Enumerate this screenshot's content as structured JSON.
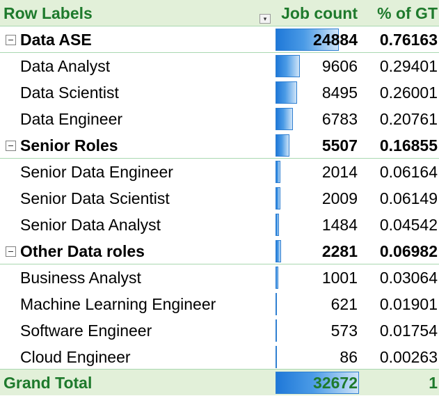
{
  "header": {
    "row_labels": "Row Labels",
    "job_count": "Job count",
    "pct_of_gt": "% of GT"
  },
  "colors": {
    "header_bg": "#e2f0d9",
    "header_text": "#1e7a2c",
    "databar": "#1f78d8"
  },
  "max_count": 32672,
  "rows": [
    {
      "label": "Data ASE",
      "count": "24884",
      "pct": "0.76163",
      "level": "group",
      "value": 24884
    },
    {
      "label": "Data Analyst",
      "count": "9606",
      "pct": "0.29401",
      "level": "item",
      "value": 9606
    },
    {
      "label": "Data Scientist",
      "count": "8495",
      "pct": "0.26001",
      "level": "item",
      "value": 8495
    },
    {
      "label": "Data Engineer",
      "count": "6783",
      "pct": "0.20761",
      "level": "item",
      "value": 6783
    },
    {
      "label": "Senior Roles",
      "count": "5507",
      "pct": "0.16855",
      "level": "group",
      "value": 5507
    },
    {
      "label": "Senior Data Engineer",
      "count": "2014",
      "pct": "0.06164",
      "level": "item",
      "value": 2014
    },
    {
      "label": "Senior Data Scientist",
      "count": "2009",
      "pct": "0.06149",
      "level": "item",
      "value": 2009
    },
    {
      "label": "Senior Data Analyst",
      "count": "1484",
      "pct": "0.04542",
      "level": "item",
      "value": 1484
    },
    {
      "label": "Other Data roles",
      "count": "2281",
      "pct": "0.06982",
      "level": "group",
      "value": 2281
    },
    {
      "label": "Business Analyst",
      "count": "1001",
      "pct": "0.03064",
      "level": "item",
      "value": 1001
    },
    {
      "label": "Machine Learning Engineer",
      "count": "621",
      "pct": "0.01901",
      "level": "item",
      "value": 621
    },
    {
      "label": "Software Engineer",
      "count": "573",
      "pct": "0.01754",
      "level": "item",
      "value": 573
    },
    {
      "label": "Cloud Engineer",
      "count": "86",
      "pct": "0.00263",
      "level": "item",
      "value": 86
    }
  ],
  "grand_total": {
    "label": "Grand Total",
    "count": "32672",
    "pct": "1",
    "value": 32672
  }
}
